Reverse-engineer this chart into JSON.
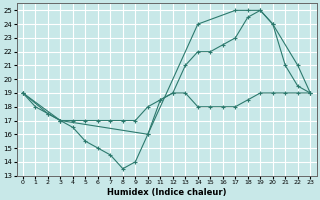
{
  "xlabel": "Humidex (Indice chaleur)",
  "bg_color": "#c8e8e8",
  "grid_color": "#ffffff",
  "line_color": "#2d7a6e",
  "xlim": [
    -0.5,
    23.5
  ],
  "ylim": [
    13,
    25.5
  ],
  "yticks": [
    13,
    14,
    15,
    16,
    17,
    18,
    19,
    20,
    21,
    22,
    23,
    24,
    25
  ],
  "xticks": [
    0,
    1,
    2,
    3,
    4,
    5,
    6,
    7,
    8,
    9,
    10,
    11,
    12,
    13,
    14,
    15,
    16,
    17,
    18,
    19,
    20,
    21,
    22,
    23
  ],
  "series1_x": [
    0,
    1,
    2,
    3,
    4,
    5,
    6,
    7,
    8,
    9,
    10,
    11,
    12,
    13,
    14,
    15,
    16,
    17,
    18,
    19,
    20,
    21,
    22,
    23
  ],
  "series1_y": [
    19,
    18,
    17.5,
    17,
    17,
    17,
    17,
    17,
    17,
    17,
    18,
    18.5,
    19,
    19,
    18,
    18,
    18,
    18,
    18.5,
    19,
    19,
    19,
    19,
    19
  ],
  "series2_x": [
    0,
    2,
    3,
    4,
    5,
    6,
    7,
    8,
    9,
    10,
    11,
    12,
    13,
    14,
    15,
    16,
    17,
    18,
    19,
    20,
    21,
    22,
    23
  ],
  "series2_y": [
    19,
    17.5,
    17,
    16.5,
    15.5,
    15,
    14.5,
    13.5,
    14,
    16,
    18.5,
    19,
    21,
    22,
    22,
    22.5,
    23,
    24.5,
    25,
    24,
    21,
    19.5,
    19
  ],
  "series3_x": [
    0,
    3,
    10,
    14,
    17,
    18,
    19,
    20,
    22,
    23
  ],
  "series3_y": [
    19,
    17,
    16,
    24,
    25,
    25,
    25,
    24,
    21,
    19
  ]
}
